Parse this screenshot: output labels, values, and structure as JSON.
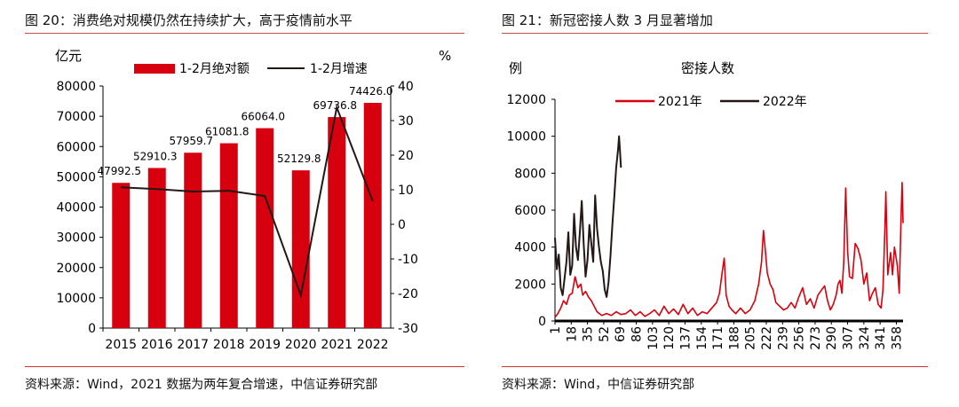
{
  "left": {
    "title": "图 20：消费绝对规模仍然在持续扩大，高于疫情前水平",
    "source": "资料来源：Wind，2021 数据为两年复合增速，中信证券研究部"
  },
  "right": {
    "title": "图 21：新冠密接人数 3 月显著增加",
    "source": "资料来源：Wind，中信证券研究部"
  },
  "colors": {
    "red": "#d7000f",
    "dark": "#231815",
    "rule": "#c0504d"
  },
  "chart_data": [
    {
      "type": "bar",
      "title": "",
      "categories": [
        "2015",
        "2016",
        "2017",
        "2018",
        "2019",
        "2020",
        "2021",
        "2022"
      ],
      "y_left_unit": "亿元",
      "y_right_unit": "%",
      "ylim_left": [
        0,
        80000
      ],
      "yticks_left": [
        "0",
        "10000",
        "20000",
        "30000",
        "40000",
        "50000",
        "60000",
        "70000",
        "80000"
      ],
      "ylim_right": [
        -30,
        40
      ],
      "yticks_right": [
        "-30",
        "-20",
        "-10",
        "0",
        "10",
        "20",
        "30",
        "40"
      ],
      "legend_position": "top",
      "series": [
        {
          "name": "1-2月绝对额",
          "type": "bar",
          "axis": "left",
          "values": [
            47992.5,
            52910.3,
            57959.7,
            61081.8,
            66064.0,
            52129.8,
            69736.8,
            74426.0
          ],
          "labels": [
            "47992.5",
            "52910.3",
            "57959.7",
            "61081.8",
            "66064.0",
            "52129.8",
            "69736.8",
            "74426.0"
          ]
        },
        {
          "name": "1-2月增速",
          "type": "line",
          "axis": "right",
          "values": [
            10.7,
            10.2,
            9.5,
            9.7,
            8.2,
            -20.5,
            33.8,
            6.7
          ]
        }
      ]
    },
    {
      "type": "line",
      "title": "密接人数",
      "y_unit": "例",
      "ylim": [
        0,
        12000
      ],
      "yticks": [
        "0",
        "2000",
        "4000",
        "6000",
        "8000",
        "10000",
        "12000"
      ],
      "xlim": [
        1,
        365
      ],
      "xticks": [
        "1",
        "18",
        "35",
        "52",
        "69",
        "86",
        "103",
        "120",
        "137",
        "154",
        "171",
        "188",
        "205",
        "222",
        "239",
        "256",
        "273",
        "290",
        "307",
        "324",
        "341",
        "358"
      ],
      "legend_position": "top-left",
      "series": [
        {
          "name": "2021年",
          "points": [
            [
              1,
              200
            ],
            [
              4,
              400
            ],
            [
              7,
              700
            ],
            [
              10,
              1100
            ],
            [
              13,
              900
            ],
            [
              16,
              1400
            ],
            [
              19,
              1500
            ],
            [
              22,
              2400
            ],
            [
              25,
              1800
            ],
            [
              28,
              2000
            ],
            [
              30,
              1400
            ],
            [
              33,
              1600
            ],
            [
              36,
              1300
            ],
            [
              39,
              1100
            ],
            [
              42,
              800
            ],
            [
              45,
              500
            ],
            [
              50,
              300
            ],
            [
              55,
              400
            ],
            [
              60,
              300
            ],
            [
              65,
              500
            ],
            [
              70,
              350
            ],
            [
              75,
              400
            ],
            [
              80,
              600
            ],
            [
              85,
              300
            ],
            [
              90,
              500
            ],
            [
              95,
              250
            ],
            [
              100,
              400
            ],
            [
              105,
              600
            ],
            [
              110,
              300
            ],
            [
              115,
              800
            ],
            [
              120,
              400
            ],
            [
              125,
              650
            ],
            [
              130,
              350
            ],
            [
              135,
              900
            ],
            [
              140,
              400
            ],
            [
              145,
              700
            ],
            [
              150,
              300
            ],
            [
              155,
              500
            ],
            [
              160,
              400
            ],
            [
              165,
              700
            ],
            [
              170,
              1000
            ],
            [
              173,
              1500
            ],
            [
              176,
              2700
            ],
            [
              178,
              3400
            ],
            [
              180,
              1400
            ],
            [
              183,
              800
            ],
            [
              186,
              600
            ],
            [
              190,
              400
            ],
            [
              195,
              700
            ],
            [
              200,
              400
            ],
            [
              205,
              600
            ],
            [
              210,
              1100
            ],
            [
              214,
              2000
            ],
            [
              217,
              3200
            ],
            [
              219,
              4900
            ],
            [
              221,
              3800
            ],
            [
              223,
              2600
            ],
            [
              226,
              2000
            ],
            [
              229,
              1700
            ],
            [
              232,
              1000
            ],
            [
              236,
              800
            ],
            [
              240,
              600
            ],
            [
              244,
              700
            ],
            [
              248,
              1000
            ],
            [
              252,
              700
            ],
            [
              256,
              1300
            ],
            [
              260,
              1800
            ],
            [
              264,
              900
            ],
            [
              268,
              1200
            ],
            [
              272,
              700
            ],
            [
              276,
              1400
            ],
            [
              280,
              1700
            ],
            [
              283,
              1900
            ],
            [
              286,
              1100
            ],
            [
              289,
              600
            ],
            [
              292,
              900
            ],
            [
              295,
              1400
            ],
            [
              297,
              2000
            ],
            [
              299,
              2200
            ],
            [
              301,
              1500
            ],
            [
              303,
              3200
            ],
            [
              305,
              7200
            ],
            [
              307,
              3800
            ],
            [
              309,
              2400
            ],
            [
              312,
              2300
            ],
            [
              315,
              4200
            ],
            [
              318,
              3900
            ],
            [
              321,
              3300
            ],
            [
              324,
              2000
            ],
            [
              327,
              2600
            ],
            [
              330,
              1100
            ],
            [
              333,
              1500
            ],
            [
              336,
              1800
            ],
            [
              339,
              900
            ],
            [
              342,
              700
            ],
            [
              344,
              1700
            ],
            [
              346,
              5000
            ],
            [
              347,
              7000
            ],
            [
              349,
              2500
            ],
            [
              352,
              3700
            ],
            [
              354,
              2500
            ],
            [
              356,
              4000
            ],
            [
              359,
              3000
            ],
            [
              361,
              1500
            ],
            [
              363,
              5800
            ],
            [
              364,
              7500
            ],
            [
              365,
              5300
            ]
          ]
        },
        {
          "name": "2022年",
          "points": [
            [
              1,
              4500
            ],
            [
              3,
              2800
            ],
            [
              5,
              3600
            ],
            [
              7,
              1800
            ],
            [
              9,
              1400
            ],
            [
              11,
              2300
            ],
            [
              13,
              3200
            ],
            [
              15,
              4800
            ],
            [
              17,
              2500
            ],
            [
              19,
              3000
            ],
            [
              21,
              5800
            ],
            [
              23,
              4000
            ],
            [
              25,
              3300
            ],
            [
              27,
              4800
            ],
            [
              29,
              6500
            ],
            [
              31,
              4200
            ],
            [
              33,
              2400
            ],
            [
              35,
              3300
            ],
            [
              37,
              5200
            ],
            [
              39,
              4200
            ],
            [
              41,
              3200
            ],
            [
              43,
              6800
            ],
            [
              45,
              5000
            ],
            [
              47,
              4000
            ],
            [
              49,
              3200
            ],
            [
              51,
              2700
            ],
            [
              53,
              1700
            ],
            [
              55,
              1300
            ],
            [
              57,
              2100
            ],
            [
              59,
              3500
            ],
            [
              61,
              5200
            ],
            [
              63,
              6700
            ],
            [
              65,
              8300
            ],
            [
              67,
              9300
            ],
            [
              68,
              10000
            ],
            [
              69,
              9200
            ],
            [
              70,
              8300
            ]
          ]
        }
      ]
    }
  ]
}
